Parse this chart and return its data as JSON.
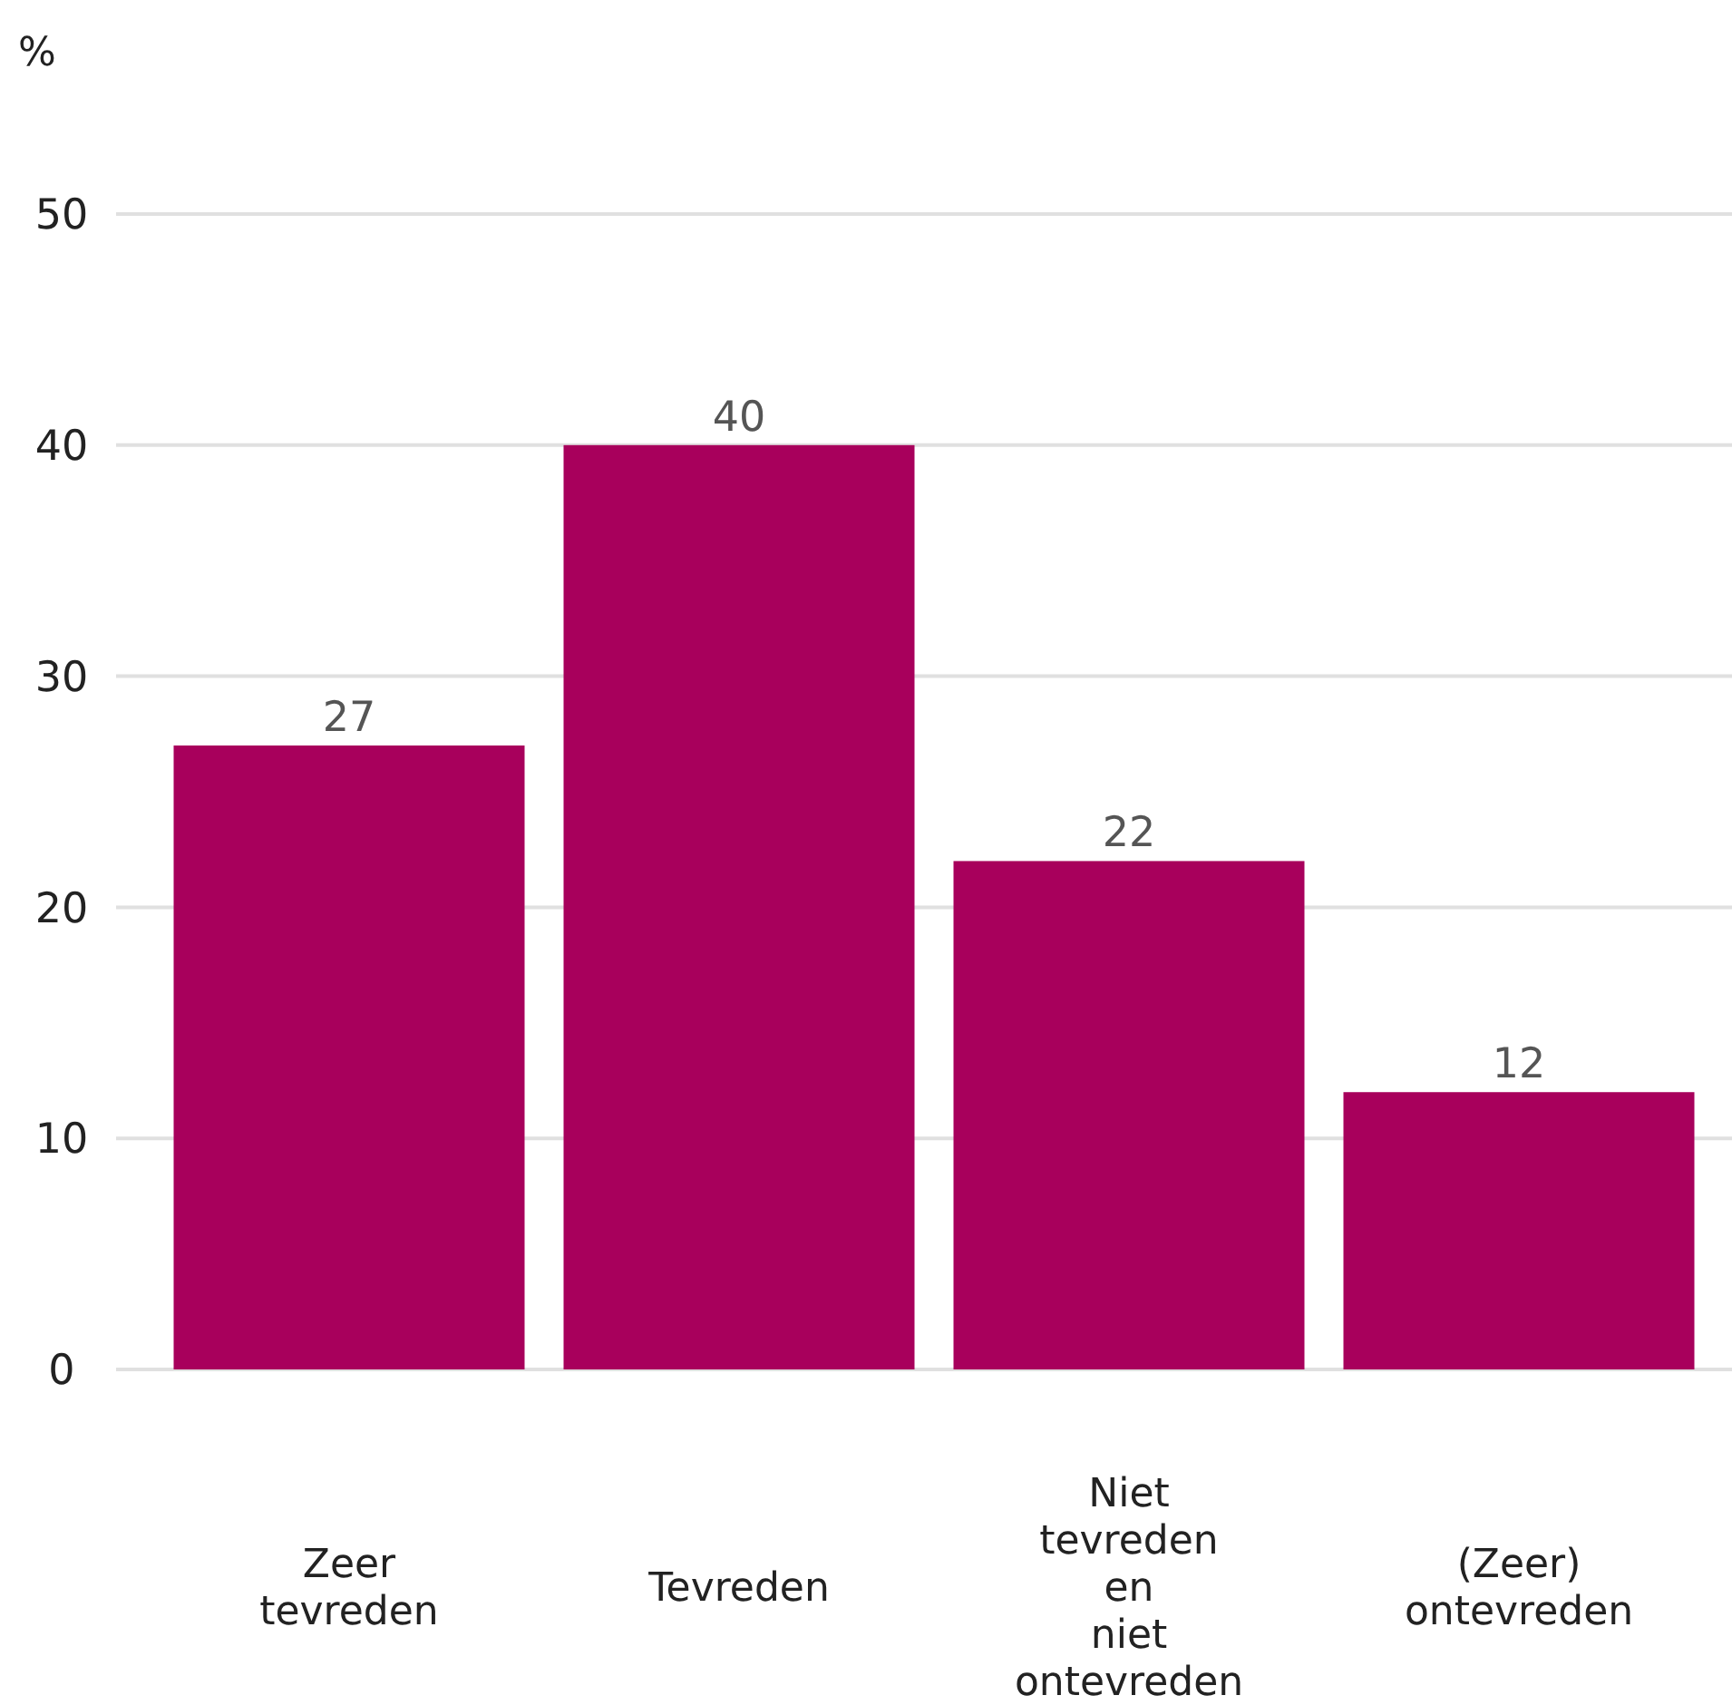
{
  "chart_data": {
    "type": "bar",
    "ylabel": "%",
    "categories": [
      "Zeer tevreden",
      "Tevreden",
      "Niet tevreden en niet ontevreden",
      "(Zeer) ontevreden"
    ],
    "values": [
      27,
      40,
      22,
      12
    ],
    "color": "#a8005c",
    "ylim": [
      0,
      50
    ],
    "yticks": [
      0,
      10,
      20,
      30,
      40,
      50
    ],
    "grid": "y",
    "data_labels": true
  }
}
